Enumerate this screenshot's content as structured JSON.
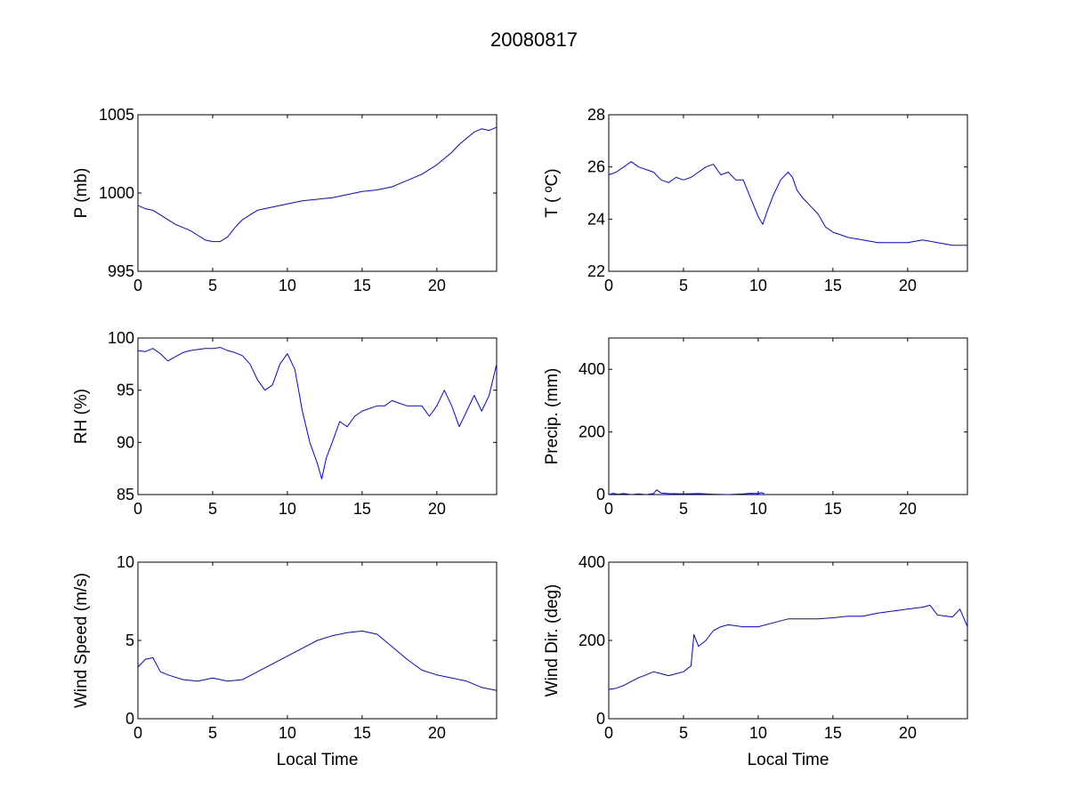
{
  "figure": {
    "title": "20080817"
  },
  "chart_data": [
    {
      "type": "line",
      "title": "",
      "xlabel": "",
      "ylabel": "P (mb)",
      "xlim": [
        0,
        24
      ],
      "ylim": [
        995,
        1005
      ],
      "xticks": [
        0,
        5,
        10,
        15,
        20
      ],
      "yticks": [
        995,
        1000,
        1005
      ],
      "grid": false,
      "series": [
        {
          "color": "#0000ff",
          "x": [
            0,
            0.5,
            1,
            1.5,
            2,
            2.5,
            3,
            3.5,
            4,
            4.5,
            5,
            5.5,
            6,
            6.5,
            7,
            7.5,
            8,
            9,
            10,
            11,
            12,
            13,
            14,
            15,
            16,
            17,
            17.5,
            18,
            18.5,
            19,
            19.5,
            20,
            20.5,
            21,
            21.5,
            22,
            22.5,
            23,
            23.5,
            24
          ],
          "y": [
            999.2,
            999.0,
            998.9,
            998.6,
            998.3,
            998.0,
            997.8,
            997.6,
            997.3,
            997.0,
            996.9,
            996.9,
            997.2,
            997.8,
            998.3,
            998.6,
            998.9,
            999.1,
            999.3,
            999.5,
            999.6,
            999.7,
            999.9,
            1000.1,
            1000.2,
            1000.4,
            1000.6,
            1000.8,
            1001.0,
            1001.2,
            1001.5,
            1001.8,
            1002.2,
            1002.6,
            1003.1,
            1003.5,
            1003.9,
            1004.1,
            1004.0,
            1004.2
          ]
        }
      ]
    },
    {
      "type": "line",
      "title": "",
      "xlabel": "",
      "ylabel": "T ( ºC)",
      "xlim": [
        0,
        24
      ],
      "ylim": [
        22,
        28
      ],
      "xticks": [
        0,
        5,
        10,
        15,
        20
      ],
      "yticks": [
        22,
        24,
        26,
        28
      ],
      "grid": false,
      "series": [
        {
          "color": "#0000ff",
          "x": [
            0,
            0.5,
            1,
            1.5,
            2,
            2.5,
            3,
            3.5,
            4,
            4.5,
            5,
            5.5,
            6,
            6.5,
            7,
            7.5,
            8,
            8.5,
            9,
            9.5,
            10,
            10.3,
            10.6,
            11,
            11.5,
            12,
            12.3,
            12.6,
            13,
            13.5,
            14,
            14.5,
            15,
            15.5,
            16,
            17,
            18,
            19,
            20,
            21,
            22,
            23,
            24
          ],
          "y": [
            25.7,
            25.8,
            26.0,
            26.2,
            26.0,
            25.9,
            25.8,
            25.5,
            25.4,
            25.6,
            25.5,
            25.6,
            25.8,
            26.0,
            26.1,
            25.7,
            25.8,
            25.5,
            25.5,
            24.8,
            24.1,
            23.8,
            24.3,
            24.9,
            25.5,
            25.8,
            25.6,
            25.1,
            24.8,
            24.5,
            24.2,
            23.7,
            23.5,
            23.4,
            23.3,
            23.2,
            23.1,
            23.1,
            23.1,
            23.2,
            23.1,
            23.0,
            23.0
          ]
        }
      ]
    },
    {
      "type": "line",
      "title": "",
      "xlabel": "",
      "ylabel": "RH (%)",
      "xlim": [
        0,
        24
      ],
      "ylim": [
        85,
        100
      ],
      "xticks": [
        0,
        5,
        10,
        15,
        20
      ],
      "yticks": [
        85,
        90,
        95,
        100
      ],
      "grid": false,
      "series": [
        {
          "color": "#0000ff",
          "x": [
            0,
            0.5,
            1,
            1.5,
            2,
            2.5,
            3,
            3.5,
            4,
            4.5,
            5,
            5.5,
            6,
            6.5,
            7,
            7.5,
            8,
            8.5,
            9,
            9.5,
            10,
            10.5,
            11,
            11.5,
            12,
            12.3,
            12.6,
            13,
            13.5,
            14,
            14.5,
            15,
            16,
            16.5,
            17,
            18,
            19,
            19.5,
            20,
            20.5,
            21,
            21.5,
            22,
            22.5,
            23,
            23.5,
            24
          ],
          "y": [
            98.8,
            98.7,
            99.0,
            98.5,
            97.8,
            98.2,
            98.6,
            98.8,
            98.9,
            99.0,
            99.0,
            99.1,
            98.8,
            98.6,
            98.3,
            97.5,
            96.0,
            95.0,
            95.5,
            97.5,
            98.5,
            97.0,
            93.0,
            90.0,
            88.0,
            86.5,
            88.5,
            90.0,
            92.0,
            91.5,
            92.5,
            93.0,
            93.5,
            93.5,
            94.0,
            93.5,
            93.5,
            92.5,
            93.5,
            95.0,
            93.5,
            91.5,
            93.0,
            94.5,
            93.0,
            94.5,
            97.5
          ]
        }
      ]
    },
    {
      "type": "line",
      "title": "",
      "xlabel": "",
      "ylabel": "Precip. (mm)",
      "xlim": [
        0,
        24
      ],
      "ylim": [
        0,
        500
      ],
      "xticks": [
        0,
        5,
        10,
        15,
        20
      ],
      "yticks": [
        0,
        200,
        400
      ],
      "grid": false,
      "series": [
        {
          "color": "#0000ff",
          "x": [
            0,
            0.3,
            0.6,
            1,
            1.5,
            2,
            2.5,
            3,
            3.2,
            3.5,
            4,
            5,
            6,
            7,
            8,
            9,
            9.5,
            10,
            10.2,
            10.4
          ],
          "y": [
            0,
            4,
            1,
            3,
            0,
            2,
            0,
            3,
            15,
            5,
            3,
            2,
            3,
            1,
            0,
            2,
            4,
            3,
            6,
            3
          ]
        }
      ]
    },
    {
      "type": "line",
      "title": "",
      "xlabel": "Local Time",
      "ylabel": "Wind Speed (m/s)",
      "xlim": [
        0,
        24
      ],
      "ylim": [
        0,
        10
      ],
      "xticks": [
        0,
        5,
        10,
        15,
        20
      ],
      "yticks": [
        0,
        5,
        10
      ],
      "grid": false,
      "series": [
        {
          "color": "#0000ff",
          "x": [
            0,
            0.5,
            1,
            1.5,
            2,
            3,
            4,
            5,
            6,
            7,
            8,
            9,
            10,
            11,
            12,
            13,
            14,
            15,
            16,
            17,
            18,
            19,
            20,
            21,
            22,
            23,
            24
          ],
          "y": [
            3.3,
            3.8,
            3.9,
            3.0,
            2.8,
            2.5,
            2.4,
            2.6,
            2.4,
            2.5,
            3.0,
            3.5,
            4.0,
            4.5,
            5.0,
            5.3,
            5.5,
            5.6,
            5.4,
            4.6,
            3.8,
            3.1,
            2.8,
            2.6,
            2.4,
            2.0,
            1.8
          ]
        }
      ]
    },
    {
      "type": "line",
      "title": "",
      "xlabel": "Local Time",
      "ylabel": "Wind Dir. (deg)",
      "xlim": [
        0,
        24
      ],
      "ylim": [
        0,
        400
      ],
      "xticks": [
        0,
        5,
        10,
        15,
        20
      ],
      "yticks": [
        0,
        200,
        400
      ],
      "grid": false,
      "series": [
        {
          "color": "#0000ff",
          "x": [
            0,
            0.5,
            1,
            1.5,
            2,
            2.5,
            3,
            3.5,
            4,
            4.5,
            5,
            5.5,
            5.7,
            6,
            6.5,
            7,
            7.5,
            8,
            9,
            10,
            11,
            12,
            13,
            14,
            15,
            16,
            17,
            18,
            19,
            20,
            21,
            21.5,
            22,
            23,
            23.5,
            24
          ],
          "y": [
            75,
            78,
            85,
            95,
            105,
            112,
            120,
            115,
            110,
            115,
            120,
            135,
            215,
            185,
            200,
            225,
            235,
            240,
            235,
            235,
            245,
            255,
            255,
            255,
            258,
            262,
            262,
            270,
            275,
            280,
            285,
            290,
            265,
            260,
            280,
            235
          ]
        }
      ]
    }
  ]
}
